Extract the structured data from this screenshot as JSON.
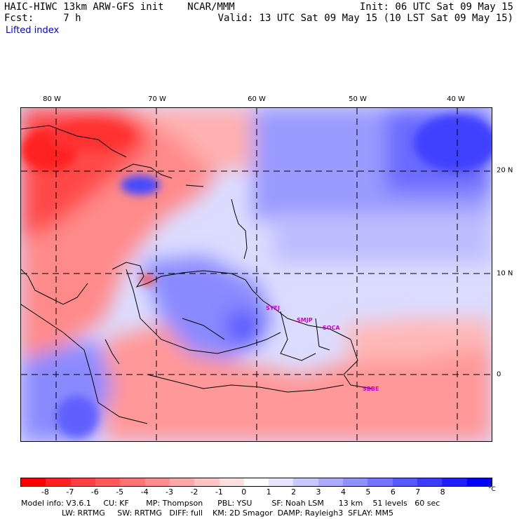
{
  "header": {
    "title": "HAIC-HIWC 13km ARW-GFS init    NCAR/MMM",
    "fcst": "Fcst:     7 h",
    "init": "Init: 06 UTC Sat 09 May 15",
    "valid": "Valid: 13 UTC Sat 09 May 15 (10 LST Sat 09 May 15)",
    "field": "Lifted index"
  },
  "map": {
    "lon_labels": [
      "80 W",
      "70 W",
      "60 W",
      "50 W",
      "40 W"
    ],
    "lat_labels": [
      "20 N",
      "10 N",
      "0"
    ],
    "sites": [
      "SYEJ",
      "SMJP",
      "SOCA",
      "SBBE"
    ]
  },
  "colorbar": {
    "ticks": [
      "-8",
      "-7",
      "-6",
      "-5",
      "-4",
      "-3",
      "-2",
      "-1",
      "0",
      "1",
      "2",
      "3",
      "4",
      "5",
      "6",
      "7",
      "8"
    ],
    "unit": "°C",
    "colors": [
      "#ff0000",
      "#ff2020",
      "#ff4040",
      "#ff5a5a",
      "#ff7474",
      "#ff8e8e",
      "#ffa8a8",
      "#ffc4c4",
      "#ffe0e0",
      "#ffffff",
      "#e4e4ff",
      "#c8c8ff",
      "#acacff",
      "#9090ff",
      "#7474ff",
      "#5858ff",
      "#3c3cff",
      "#2020ff",
      "#0000ff"
    ]
  },
  "model_info": {
    "line1": "Model info: V3.6.1     CU: KF       MP: Thompson      PBL: YSU        SF: Noah LSM      13 km    51 levels   60 sec",
    "line2": "LW: RRTMG     SW: RRTMG   DIFF: full    KM: 2D Smagor  DAMP: Rayleigh3  SFLAY: MM5"
  }
}
